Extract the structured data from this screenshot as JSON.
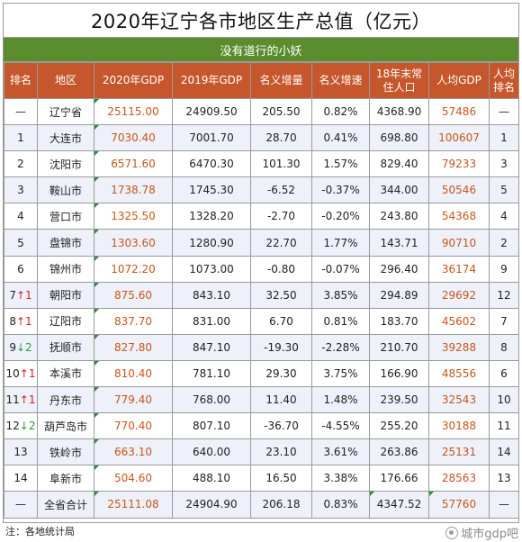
{
  "title": "2020年辽宁各市地区生产总值（亿元）",
  "subtitle": "没有道行的小妖",
  "headers": [
    "排名",
    "地区",
    "2020年GDP",
    "2019年GDP",
    "名义增量",
    "名义增速",
    "18年末常住人口",
    "人均GDP",
    "人均排名"
  ],
  "rows": [
    {
      "rank": "—",
      "arrow": "",
      "region": "辽宁省",
      "gdp2020": "25115.00",
      "gdp2019": "24909.50",
      "increase": "205.50",
      "growth": "0.82%",
      "population": "4368.90",
      "per_capita": "57486",
      "per_capita_rank": "—"
    },
    {
      "rank": "1",
      "arrow": "",
      "region": "大连市",
      "gdp2020": "7030.40",
      "gdp2019": "7001.70",
      "increase": "28.70",
      "growth": "0.41%",
      "population": "698.80",
      "per_capita": "100607",
      "per_capita_rank": "1"
    },
    {
      "rank": "2",
      "arrow": "",
      "region": "沈阳市",
      "gdp2020": "6571.60",
      "gdp2019": "6470.30",
      "increase": "101.30",
      "growth": "1.57%",
      "population": "829.40",
      "per_capita": "79233",
      "per_capita_rank": "3"
    },
    {
      "rank": "3",
      "arrow": "",
      "region": "鞍山市",
      "gdp2020": "1738.78",
      "gdp2019": "1745.30",
      "increase": "-6.52",
      "growth": "-0.37%",
      "population": "344.00",
      "per_capita": "50546",
      "per_capita_rank": "5"
    },
    {
      "rank": "4",
      "arrow": "",
      "region": "营口市",
      "gdp2020": "1325.50",
      "gdp2019": "1328.20",
      "increase": "-2.70",
      "growth": "-0.20%",
      "population": "243.80",
      "per_capita": "54368",
      "per_capita_rank": "4"
    },
    {
      "rank": "5",
      "arrow": "",
      "region": "盘锦市",
      "gdp2020": "1303.60",
      "gdp2019": "1280.90",
      "increase": "22.70",
      "growth": "1.77%",
      "population": "143.71",
      "per_capita": "90710",
      "per_capita_rank": "2"
    },
    {
      "rank": "6",
      "arrow": "",
      "region": "锦州市",
      "gdp2020": "1072.20",
      "gdp2019": "1073.00",
      "increase": "-0.80",
      "growth": "-0.07%",
      "population": "296.40",
      "per_capita": "36174",
      "per_capita_rank": "9"
    },
    {
      "rank": "7",
      "arrow": "↑1",
      "region": "朝阳市",
      "gdp2020": "875.60",
      "gdp2019": "843.10",
      "increase": "32.50",
      "growth": "3.85%",
      "population": "294.89",
      "per_capita": "29692",
      "per_capita_rank": "12"
    },
    {
      "rank": "8",
      "arrow": "↑1",
      "region": "辽阳市",
      "gdp2020": "837.70",
      "gdp2019": "831.00",
      "increase": "6.70",
      "growth": "0.81%",
      "population": "183.70",
      "per_capita": "45602",
      "per_capita_rank": "7"
    },
    {
      "rank": "9",
      "arrow": "↓2",
      "region": "抚顺市",
      "gdp2020": "827.80",
      "gdp2019": "847.10",
      "increase": "-19.30",
      "growth": "-2.28%",
      "population": "210.70",
      "per_capita": "39288",
      "per_capita_rank": "8"
    },
    {
      "rank": "10",
      "arrow": "↑1",
      "region": "本溪市",
      "gdp2020": "810.40",
      "gdp2019": "781.10",
      "increase": "29.30",
      "growth": "3.75%",
      "population": "166.90",
      "per_capita": "48556",
      "per_capita_rank": "6"
    },
    {
      "rank": "11",
      "arrow": "↑1",
      "region": "丹东市",
      "gdp2020": "779.40",
      "gdp2019": "768.00",
      "increase": "11.40",
      "growth": "1.48%",
      "population": "239.50",
      "per_capita": "32543",
      "per_capita_rank": "10"
    },
    {
      "rank": "12",
      "arrow": "↓2",
      "region": "葫芦岛市",
      "gdp2020": "770.40",
      "gdp2019": "807.10",
      "increase": "-36.70",
      "growth": "-4.55%",
      "population": "255.20",
      "per_capita": "30188",
      "per_capita_rank": "11"
    },
    {
      "rank": "13",
      "arrow": "",
      "region": "铁岭市",
      "gdp2020": "663.10",
      "gdp2019": "640.00",
      "increase": "23.10",
      "growth": "3.61%",
      "population": "263.86",
      "per_capita": "25131",
      "per_capita_rank": "14"
    },
    {
      "rank": "14",
      "arrow": "",
      "region": "阜新市",
      "gdp2020": "504.60",
      "gdp2019": "488.10",
      "increase": "16.50",
      "growth": "3.38%",
      "population": "176.66",
      "per_capita": "28563",
      "per_capita_rank": "13"
    },
    {
      "rank": "—",
      "arrow": "",
      "region": "全省合计",
      "gdp2020": "25111.08",
      "gdp2019": "24904.90",
      "increase": "206.18",
      "growth": "0.83%",
      "population": "4347.52",
      "per_capita": "57760",
      "per_capita_rank": "—"
    }
  ],
  "note": "注：各地统计局",
  "watermark": "城市gdp吧",
  "colors": {
    "title_bar": "#5b8d2f",
    "header": "#c6562c",
    "gdp_text": "#c8551b",
    "arrow_up": "#d62020",
    "arrow_down": "#2e9b3a",
    "stripe": "#eef1fa"
  }
}
